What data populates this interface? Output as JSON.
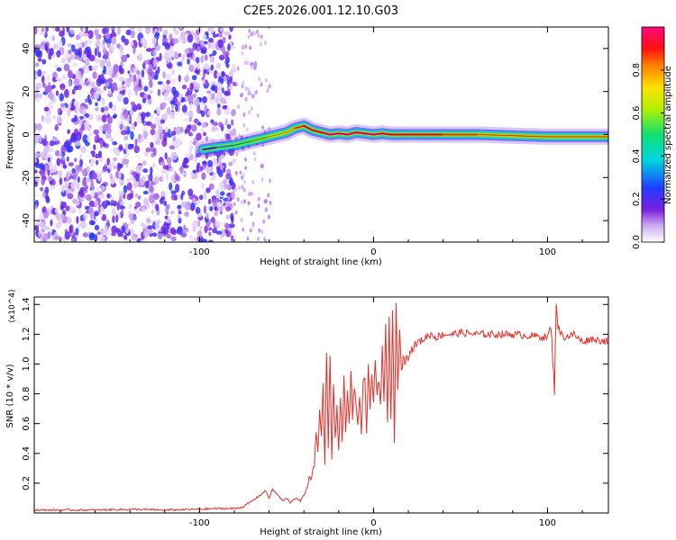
{
  "figure_title": "C2E5.2026.001.12.10.G03",
  "colors": {
    "snr_line": "#e8302a",
    "axis": "#000000",
    "background": "#ffffff"
  },
  "chart_data": [
    {
      "type": "heatmap",
      "title": "C2E5.2026.001.12.10.G03",
      "xlabel": "Height of straight line (km)",
      "ylabel": "Frequency (Hz)",
      "xlim": [
        -195,
        135
      ],
      "ylim": [
        -50,
        50
      ],
      "xticks": [
        -100,
        0,
        100
      ],
      "xtick_labels": [
        "-100",
        "0",
        "100"
      ],
      "yticks": [
        -40,
        -20,
        0,
        20,
        40
      ],
      "ytick_labels": [
        "-40",
        "-20",
        "0",
        "20",
        "40"
      ],
      "colorbar": {
        "label": "Normalized spectral amplitude",
        "range": [
          0,
          1
        ],
        "ticks": [
          0.0,
          0.2,
          0.4,
          0.6,
          0.8
        ],
        "tick_labels": [
          "0.0",
          "0.2",
          "0.4",
          "0.6",
          "0.8"
        ],
        "colormap": "rainbow (white-violet-blue-cyan-green-yellow-red-magenta)"
      },
      "ridge": {
        "description": "Dominant frequency ridge of the signal vs height",
        "x": [
          -98,
          -90,
          -80,
          -70,
          -60,
          -50,
          -45,
          -40,
          -35,
          -30,
          -25,
          -20,
          -15,
          -10,
          -5,
          0,
          5,
          10,
          20,
          40,
          60,
          80,
          100,
          120,
          135
        ],
        "y": [
          -7,
          -6,
          -5,
          -3,
          -1,
          1,
          3,
          4,
          2,
          1,
          0,
          0.5,
          0,
          1,
          0.5,
          0,
          0.5,
          0,
          0,
          0,
          0,
          -0.5,
          -1,
          -1,
          -1
        ],
        "amplitude": [
          0.25,
          0.35,
          0.45,
          0.55,
          0.65,
          0.75,
          0.85,
          0.9,
          0.95,
          1.0,
          1.0,
          1.0,
          1.0,
          1.0,
          1.0,
          1.0,
          0.95,
          0.95,
          0.9,
          0.85,
          0.8,
          0.8,
          0.8,
          0.8,
          0.8
        ]
      },
      "noise_region_x": [
        -195,
        -80
      ]
    },
    {
      "type": "line",
      "title": "",
      "xlabel": "Height of straight line (km)",
      "ylabel": "SNR (10 * v/v)",
      "y_multiplier": "(x10^4)",
      "xlim": [
        -195,
        135
      ],
      "ylim": [
        0,
        1.45
      ],
      "xticks": [
        -100,
        0,
        100
      ],
      "xtick_labels": [
        "-100",
        "0",
        "100"
      ],
      "yticks": [
        0.2,
        0.4,
        0.6,
        0.8,
        1.0,
        1.2,
        1.4
      ],
      "ytick_labels": [
        "0.2",
        "0.4",
        "0.6",
        "0.8",
        "1.0",
        "1.2",
        "1.4"
      ],
      "series": [
        {
          "name": "SNR",
          "x": [
            -195,
            -180,
            -160,
            -140,
            -120,
            -100,
            -90,
            -80,
            -75,
            -70,
            -65,
            -62,
            -60,
            -58,
            -55,
            -52,
            -50,
            -48,
            -45,
            -42,
            -40,
            -38,
            -36,
            -34,
            -33,
            -32,
            -31,
            -30,
            -29,
            -28,
            -27,
            -26,
            -25,
            -24,
            -23,
            -22,
            -21,
            -20,
            -19,
            -18,
            -17,
            -16,
            -15,
            -14,
            -13,
            -12,
            -11,
            -10,
            -9,
            -8,
            -7,
            -6,
            -5,
            -4,
            -3,
            -2,
            -1,
            0,
            1,
            2,
            3,
            4,
            5,
            6,
            7,
            8,
            9,
            10,
            11,
            12,
            13,
            14,
            15,
            16,
            17,
            18,
            19,
            20,
            22,
            24,
            26,
            28,
            30,
            33,
            36,
            40,
            45,
            50,
            60,
            70,
            80,
            90,
            100,
            102,
            104,
            105,
            106,
            108,
            110,
            115,
            120,
            125,
            130,
            135
          ],
          "y": [
            0.02,
            0.02,
            0.02,
            0.025,
            0.02,
            0.025,
            0.03,
            0.03,
            0.04,
            0.08,
            0.12,
            0.15,
            0.1,
            0.16,
            0.12,
            0.08,
            0.1,
            0.07,
            0.1,
            0.08,
            0.12,
            0.18,
            0.25,
            0.3,
            0.55,
            0.4,
            0.7,
            0.5,
            0.9,
            0.3,
            1.1,
            0.45,
            1.08,
            0.35,
            0.85,
            0.5,
            0.7,
            0.45,
            0.75,
            0.5,
            0.9,
            0.55,
            0.8,
            0.6,
            0.95,
            0.65,
            0.85,
            0.7,
            0.6,
            0.8,
            0.5,
            0.85,
            0.9,
            0.55,
            1.0,
            0.7,
            0.9,
            0.75,
            1.05,
            0.8,
            0.9,
            0.7,
            1.1,
            0.75,
            1.25,
            0.6,
            1.3,
            0.65,
            1.35,
            0.45,
            1.4,
            0.8,
            1.25,
            0.95,
            1.05,
            1.0,
            1.08,
            1.05,
            1.1,
            1.13,
            1.15,
            1.16,
            1.18,
            1.2,
            1.18,
            1.2,
            1.2,
            1.21,
            1.2,
            1.2,
            1.2,
            1.19,
            1.18,
            1.25,
            0.82,
            1.42,
            1.25,
            1.2,
            1.18,
            1.2,
            1.15,
            1.17,
            1.16,
            1.15
          ]
        }
      ]
    }
  ]
}
